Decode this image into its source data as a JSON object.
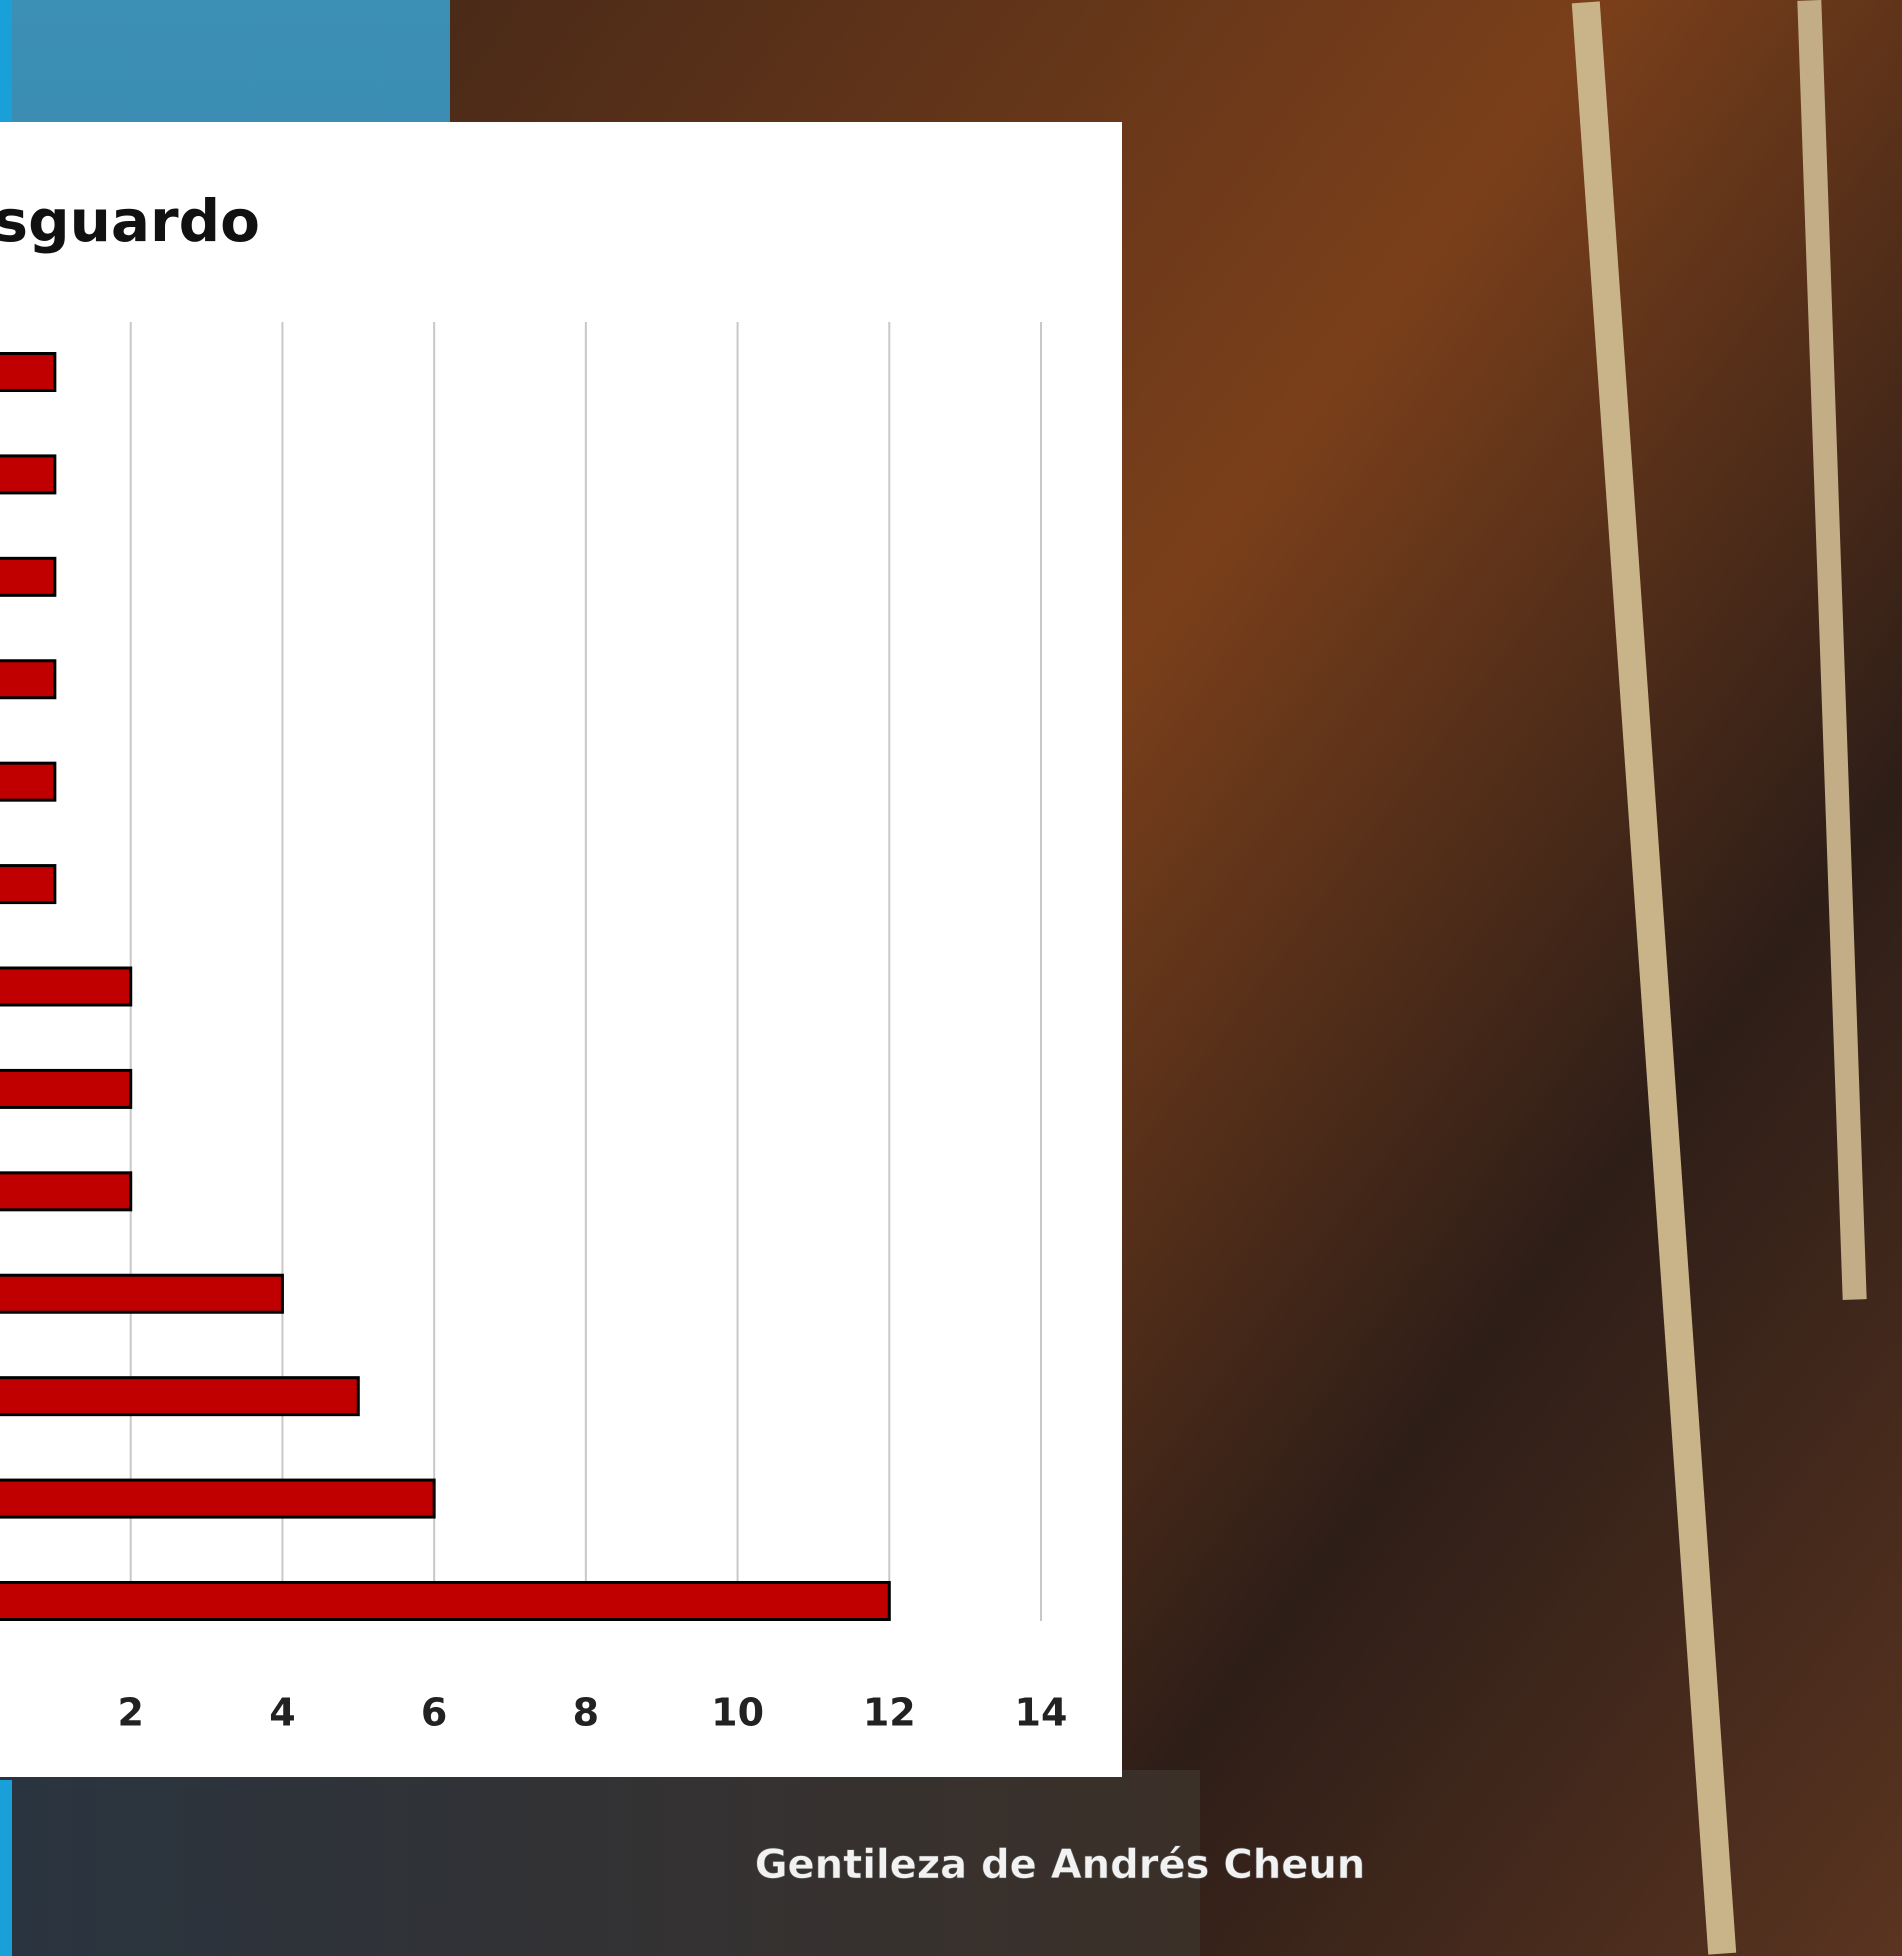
{
  "chart_data": {
    "type": "bar",
    "orientation": "horizontal",
    "title": "esguardo",
    "categories": [
      null,
      null,
      null,
      null,
      null,
      null,
      null,
      null,
      null,
      null,
      null,
      null,
      null
    ],
    "values": [
      1,
      1,
      1,
      1,
      1,
      1,
      2,
      2,
      2,
      4,
      5,
      6,
      12
    ],
    "color": "#c00000",
    "xlim": [
      0,
      14
    ],
    "xticks": [
      2,
      4,
      6,
      8,
      10,
      12,
      14
    ],
    "grid": true
  },
  "credit": "Gentileza de Andrés Cheun"
}
